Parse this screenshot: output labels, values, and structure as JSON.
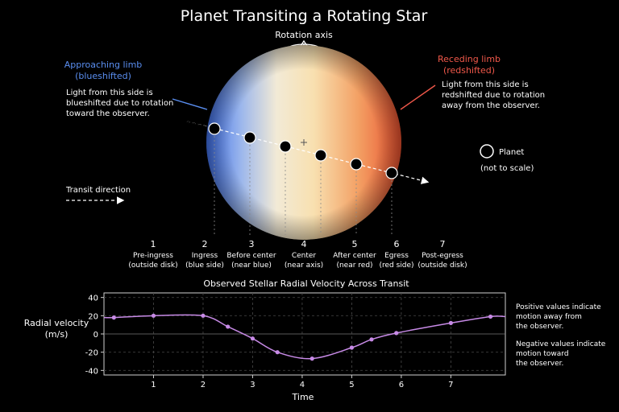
{
  "title": "Planet Transiting a Rotating Star",
  "rotation_label": "Rotation axis",
  "left_note": {
    "heading_line1": "Approaching limb",
    "heading_line2": "(blueshifted)",
    "body_lines": [
      "Light from this side is",
      "blueshifted due to rotation",
      "toward the observer."
    ]
  },
  "right_note": {
    "heading_line1": "Receding limb",
    "heading_line2": "(redshifted)",
    "body_lines": [
      "Light from this side is",
      "redshifted due to rotation",
      "away from the observer."
    ]
  },
  "legend": {
    "planet": "Planet",
    "scale_note": "(not to scale)"
  },
  "transit_direction": "Transit direction",
  "colors": {
    "approaching": "#5a8ef0",
    "receding": "#f0584a",
    "curve": "#c78ae6"
  },
  "phases": [
    {
      "number": "1",
      "line1": "Pre-ingress",
      "line2": "(outside disk)"
    },
    {
      "number": "2",
      "line1": "Ingress",
      "line2": "(blue side)"
    },
    {
      "number": "3",
      "line1": "Before center",
      "line2": "(near blue)"
    },
    {
      "number": "4",
      "line1": "Center",
      "line2": "(near axis)"
    },
    {
      "number": "5",
      "line1": "After center",
      "line2": "(near red)"
    },
    {
      "number": "6",
      "line1": "Egress",
      "line2": "(red side)"
    },
    {
      "number": "7",
      "line1": "Post-egress",
      "line2": "(outside disk)"
    }
  ],
  "chart_notes": {
    "positive": [
      "Positive values indicate",
      "motion away from",
      "the observer."
    ],
    "negative": [
      "Negative values indicate",
      "motion toward",
      "the observer."
    ]
  },
  "chart_data": {
    "type": "line",
    "title": "Observed Stellar Radial Velocity Across Transit",
    "xlabel": "Time",
    "ylabel_line1": "Radial velocity",
    "ylabel_line2": "(m/s)",
    "xlim": [
      0,
      8.1
    ],
    "ylim": [
      -45,
      45
    ],
    "x_ticks": [
      1,
      2,
      3,
      4,
      5,
      6,
      7
    ],
    "y_ticks": [
      40,
      20,
      0,
      -20,
      -40
    ],
    "grid": true,
    "series": [
      {
        "x": [
          0.2,
          1.0,
          2.0,
          2.5,
          3.0,
          3.5,
          4.2,
          5.0,
          5.4,
          5.9,
          7.0,
          7.8
        ],
        "y": [
          18,
          20,
          20,
          8,
          -5,
          -20,
          -27,
          -15,
          -6,
          1,
          12,
          19
        ]
      }
    ]
  }
}
